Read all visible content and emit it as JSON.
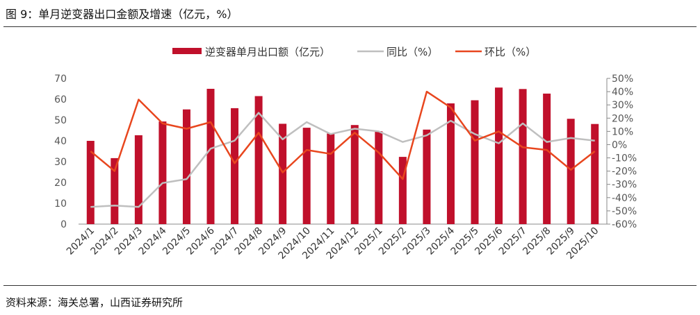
{
  "figure": {
    "title": "图 9：单月逆变器出口金额及增速（亿元，%）",
    "source": "资料来源：海关总署，山西证券研究所"
  },
  "colors": {
    "bar": "#C0102B",
    "yoy": "#BFBFBF",
    "mom": "#E8461E"
  },
  "chart_data": {
    "type": "bar",
    "categories": [
      "2024/1",
      "2024/2",
      "2024/3",
      "2024/4",
      "2024/5",
      "2024/6",
      "2024/7",
      "2024/8",
      "2024/9",
      "2024/10",
      "2024/11",
      "2024/12",
      "2025/1",
      "2025/2",
      "2025/3",
      "2025/4",
      "2025/5",
      "2025/6",
      "2025/7",
      "2025/8",
      "2025/9",
      "2025/10"
    ],
    "left_axis": {
      "min": 0,
      "max": 70,
      "ticks": [
        "0",
        "10",
        "20",
        "30",
        "40",
        "50",
        "60",
        "70"
      ]
    },
    "right_axis": {
      "min": -60,
      "max": 50,
      "ticks": [
        "50%",
        "40%",
        "30%",
        "20%",
        "10%",
        "0%",
        "-10%",
        "-20%",
        "-30%",
        "-40%",
        "-50%",
        "-60%"
      ]
    },
    "legend_position": "top",
    "series": [
      {
        "name": "逆变器单月出口额（亿元）",
        "type": "bar",
        "axis": "left",
        "values": [
          40.0,
          31.7,
          42.7,
          49.3,
          55.1,
          65.0,
          55.7,
          61.5,
          48.2,
          46.3,
          43.5,
          47.6,
          44.6,
          32.3,
          45.4,
          58.0,
          59.5,
          65.6,
          64.9,
          62.7,
          50.6,
          48.1
        ]
      },
      {
        "name": "同比（%）",
        "type": "line",
        "axis": "right",
        "values": [
          -47,
          -46,
          -47,
          -29,
          -26,
          -3,
          3,
          24,
          4,
          17,
          8,
          12,
          10,
          2,
          7,
          18,
          8,
          1,
          16,
          2,
          5,
          3
        ]
      },
      {
        "name": "环比（%）",
        "type": "line",
        "axis": "right",
        "values": [
          -5,
          -20,
          34,
          16,
          12,
          17,
          -14,
          9,
          -21,
          -4,
          -7,
          9,
          -6,
          -26,
          40,
          28,
          3,
          10,
          -2,
          -4,
          -19,
          -5
        ]
      }
    ]
  }
}
